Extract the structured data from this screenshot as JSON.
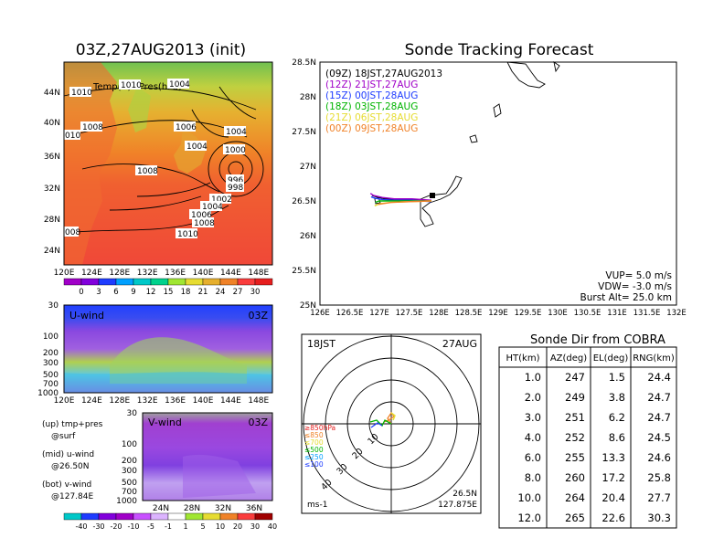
{
  "left_map": {
    "title": "03Z,27AUG2013 (init)",
    "label": "Temp(C)+Pres(hPa)",
    "lat_ticks": [
      "44N",
      "40N",
      "36N",
      "32N",
      "28N",
      "24N"
    ],
    "lon_ticks": [
      "120E",
      "124E",
      "128E",
      "132E",
      "136E",
      "140E",
      "144E",
      "148E"
    ],
    "isobars": [
      "1010",
      "1010",
      "1004",
      "1008",
      "1006",
      "1004",
      "1000",
      "996",
      "998",
      "1002",
      "1004",
      "1006",
      "1008",
      "1010",
      "1008",
      "1004",
      "010",
      "008"
    ],
    "colorbar": {
      "labels": [
        "0",
        "3",
        "6",
        "9",
        "12",
        "15",
        "18",
        "21",
        "24",
        "27",
        "30"
      ],
      "colors": [
        "#a000c8",
        "#8200dc",
        "#1e3cff",
        "#00a0ff",
        "#00c8c8",
        "#00d28c",
        "#a0e632",
        "#e6dc32",
        "#e6af2d",
        "#f08228",
        "#fa3c3c",
        "#e61e1e"
      ]
    }
  },
  "u_wind": {
    "label": "U-wind",
    "time": "03Z",
    "p_ticks": [
      "30",
      "100",
      "200",
      "300",
      "500",
      "700",
      "1000"
    ],
    "lon_ticks": [
      "120E",
      "124E",
      "128E",
      "132E",
      "136E",
      "140E",
      "144E",
      "148E"
    ]
  },
  "v_wind": {
    "label": "V-wind",
    "time": "03Z",
    "p_ticks": [
      "30",
      "100",
      "200",
      "300",
      "500",
      "700",
      "1000"
    ],
    "lat_ticks": [
      "24N",
      "28N",
      "32N",
      "36N"
    ],
    "colorbar": {
      "labels": [
        "-40",
        "-30",
        "-20",
        "-10",
        "-5",
        "-1",
        "1",
        "5",
        "10",
        "20",
        "30",
        "40"
      ],
      "colors": [
        "#00c8c8",
        "#1e3cff",
        "#8200dc",
        "#a000c8",
        "#c850ff",
        "#dcb4ff",
        "#ffffff",
        "#a0e632",
        "#e6dc32",
        "#f08228",
        "#fa3c3c",
        "#a00000"
      ]
    }
  },
  "legend_text": {
    "line1": "(up) tmp+pres",
    "line2": "@surf",
    "line3": "(mid) u-wind",
    "line4": "@26.50N",
    "line5": "(bot) v-wind",
    "line6": "@127.84E"
  },
  "tracking": {
    "title": "Sonde Tracking Forecast",
    "lat_ticks": [
      "28.5N",
      "28N",
      "27.5N",
      "27N",
      "26.5N",
      "26N",
      "25.5N",
      "25N"
    ],
    "lon_ticks": [
      "126E",
      "126.5E",
      "127E",
      "127.5E",
      "128E",
      "128.5E",
      "129E",
      "129.5E",
      "130E",
      "130.5E",
      "131E",
      "131.5E",
      "132E"
    ],
    "legend": [
      {
        "text": "(09Z)  18JST,27AUG2013",
        "color": "#000000"
      },
      {
        "text": "(12Z)  21JST,27AUG",
        "color": "#a000c8"
      },
      {
        "text": "(15Z)  00JST,28AUG",
        "color": "#1e3cff"
      },
      {
        "text": "(18Z)  03JST,28AUG",
        "color": "#00b400"
      },
      {
        "text": "(21Z)  06JST,28AUG",
        "color": "#e6dc32"
      },
      {
        "text": "(00Z)  09JST,28AUG",
        "color": "#f08228"
      }
    ],
    "vup": "VUP=  5.0  m/s",
    "vdw": "VDW= -3.0  m/s",
    "burst": "Burst Alt=  25.0  km"
  },
  "polar": {
    "time": "18JST",
    "date": "27AUG",
    "ring_labels": [
      "10",
      "20",
      "30",
      "40"
    ],
    "height_legend": [
      {
        "text": "≥850hPa",
        "color": "#e61e1e"
      },
      {
        "text": "≤850",
        "color": "#f08228"
      },
      {
        "text": "≤700",
        "color": "#e6dc32"
      },
      {
        "text": "≤500",
        "color": "#00b400"
      },
      {
        "text": "≤250",
        "color": "#00a0ff"
      },
      {
        "text": "≤100",
        "color": "#1e3cff"
      }
    ],
    "units": "ms-1",
    "lat": "26.5N",
    "lon": "127.875E"
  },
  "sonde_table": {
    "title": "Sonde Dir from COBRA",
    "headers": [
      "HT(km)",
      "AZ(deg)",
      "EL(deg)",
      "RNG(km)"
    ],
    "rows": [
      [
        "1.0",
        "247",
        "1.5",
        "24.4"
      ],
      [
        "2.0",
        "249",
        "3.8",
        "24.7"
      ],
      [
        "3.0",
        "251",
        "6.2",
        "24.7"
      ],
      [
        "4.0",
        "252",
        "8.6",
        "24.5"
      ],
      [
        "6.0",
        "255",
        "13.3",
        "24.6"
      ],
      [
        "8.0",
        "260",
        "17.2",
        "25.8"
      ],
      [
        "10.0",
        "264",
        "20.4",
        "27.7"
      ],
      [
        "12.0",
        "265",
        "22.6",
        "30.3"
      ]
    ]
  },
  "chart_data": [
    {
      "type": "heatmap",
      "title": "03Z,27AUG2013 (init)",
      "label": "Temp(C)+Pres(hPa)",
      "xlim": [
        120,
        150
      ],
      "ylim": [
        22,
        46
      ],
      "colorbar_range": [
        0,
        30
      ]
    },
    {
      "type": "heatmap",
      "label": "U-wind",
      "xlim": [
        120,
        150
      ],
      "ylim": [
        1000,
        30
      ]
    },
    {
      "type": "heatmap",
      "label": "V-wind",
      "xlim": [
        22,
        38
      ],
      "ylim": [
        1000,
        30
      ],
      "colorbar_range": [
        -40,
        40
      ]
    },
    {
      "type": "line",
      "title": "Sonde Tracking Forecast",
      "xlim": [
        126,
        132
      ],
      "ylim": [
        25,
        28.5
      ],
      "series": [
        {
          "name": "(09Z)  18JST,27AUG2013",
          "x": [
            127.875,
            127.6,
            127.3,
            127.1,
            126.95,
            126.88
          ],
          "y": [
            26.5,
            26.52,
            26.52,
            26.53,
            26.56,
            26.58
          ]
        },
        {
          "name": "(12Z)  21JST,27AUG",
          "x": [
            127.875,
            127.55,
            127.25,
            127.05,
            126.9,
            126.85
          ],
          "y": [
            26.51,
            26.53,
            26.53,
            26.55,
            26.58,
            26.61
          ]
        },
        {
          "name": "(15Z)  00JST,28AUG",
          "x": [
            127.875,
            127.55,
            127.25,
            127.05,
            126.92,
            126.86
          ],
          "y": [
            26.49,
            26.51,
            26.51,
            26.52,
            26.54,
            26.56
          ]
        },
        {
          "name": "(18Z)  03JST,28AUG",
          "x": [
            127.875,
            127.5,
            127.2,
            127.0,
            126.93
          ],
          "y": [
            26.5,
            26.5,
            26.5,
            26.5,
            26.48
          ]
        },
        {
          "name": "(21Z)  06JST,28AUG",
          "x": [
            127.875,
            127.5,
            127.2,
            127.0,
            126.95,
            126.92
          ],
          "y": [
            26.5,
            26.49,
            26.48,
            26.46,
            26.44,
            26.43
          ]
        },
        {
          "name": "(00Z)  09JST,28AUG",
          "x": [
            127.875,
            127.5,
            127.2,
            127.05,
            126.98
          ],
          "y": [
            26.5,
            26.49,
            26.48,
            26.46,
            26.45
          ]
        }
      ]
    },
    {
      "type": "scatter",
      "title": "Sonde Dir from COBRA",
      "columns": [
        "HT(km)",
        "AZ(deg)",
        "EL(deg)",
        "RNG(km)"
      ],
      "rows": [
        [
          1.0,
          247,
          1.5,
          24.4
        ],
        [
          2.0,
          249,
          3.8,
          24.7
        ],
        [
          3.0,
          251,
          6.2,
          24.7
        ],
        [
          4.0,
          252,
          8.6,
          24.5
        ],
        [
          6.0,
          255,
          13.3,
          24.6
        ],
        [
          8.0,
          260,
          17.2,
          25.8
        ],
        [
          10.0,
          264,
          20.4,
          27.7
        ],
        [
          12.0,
          265,
          22.6,
          30.3
        ]
      ]
    }
  ]
}
